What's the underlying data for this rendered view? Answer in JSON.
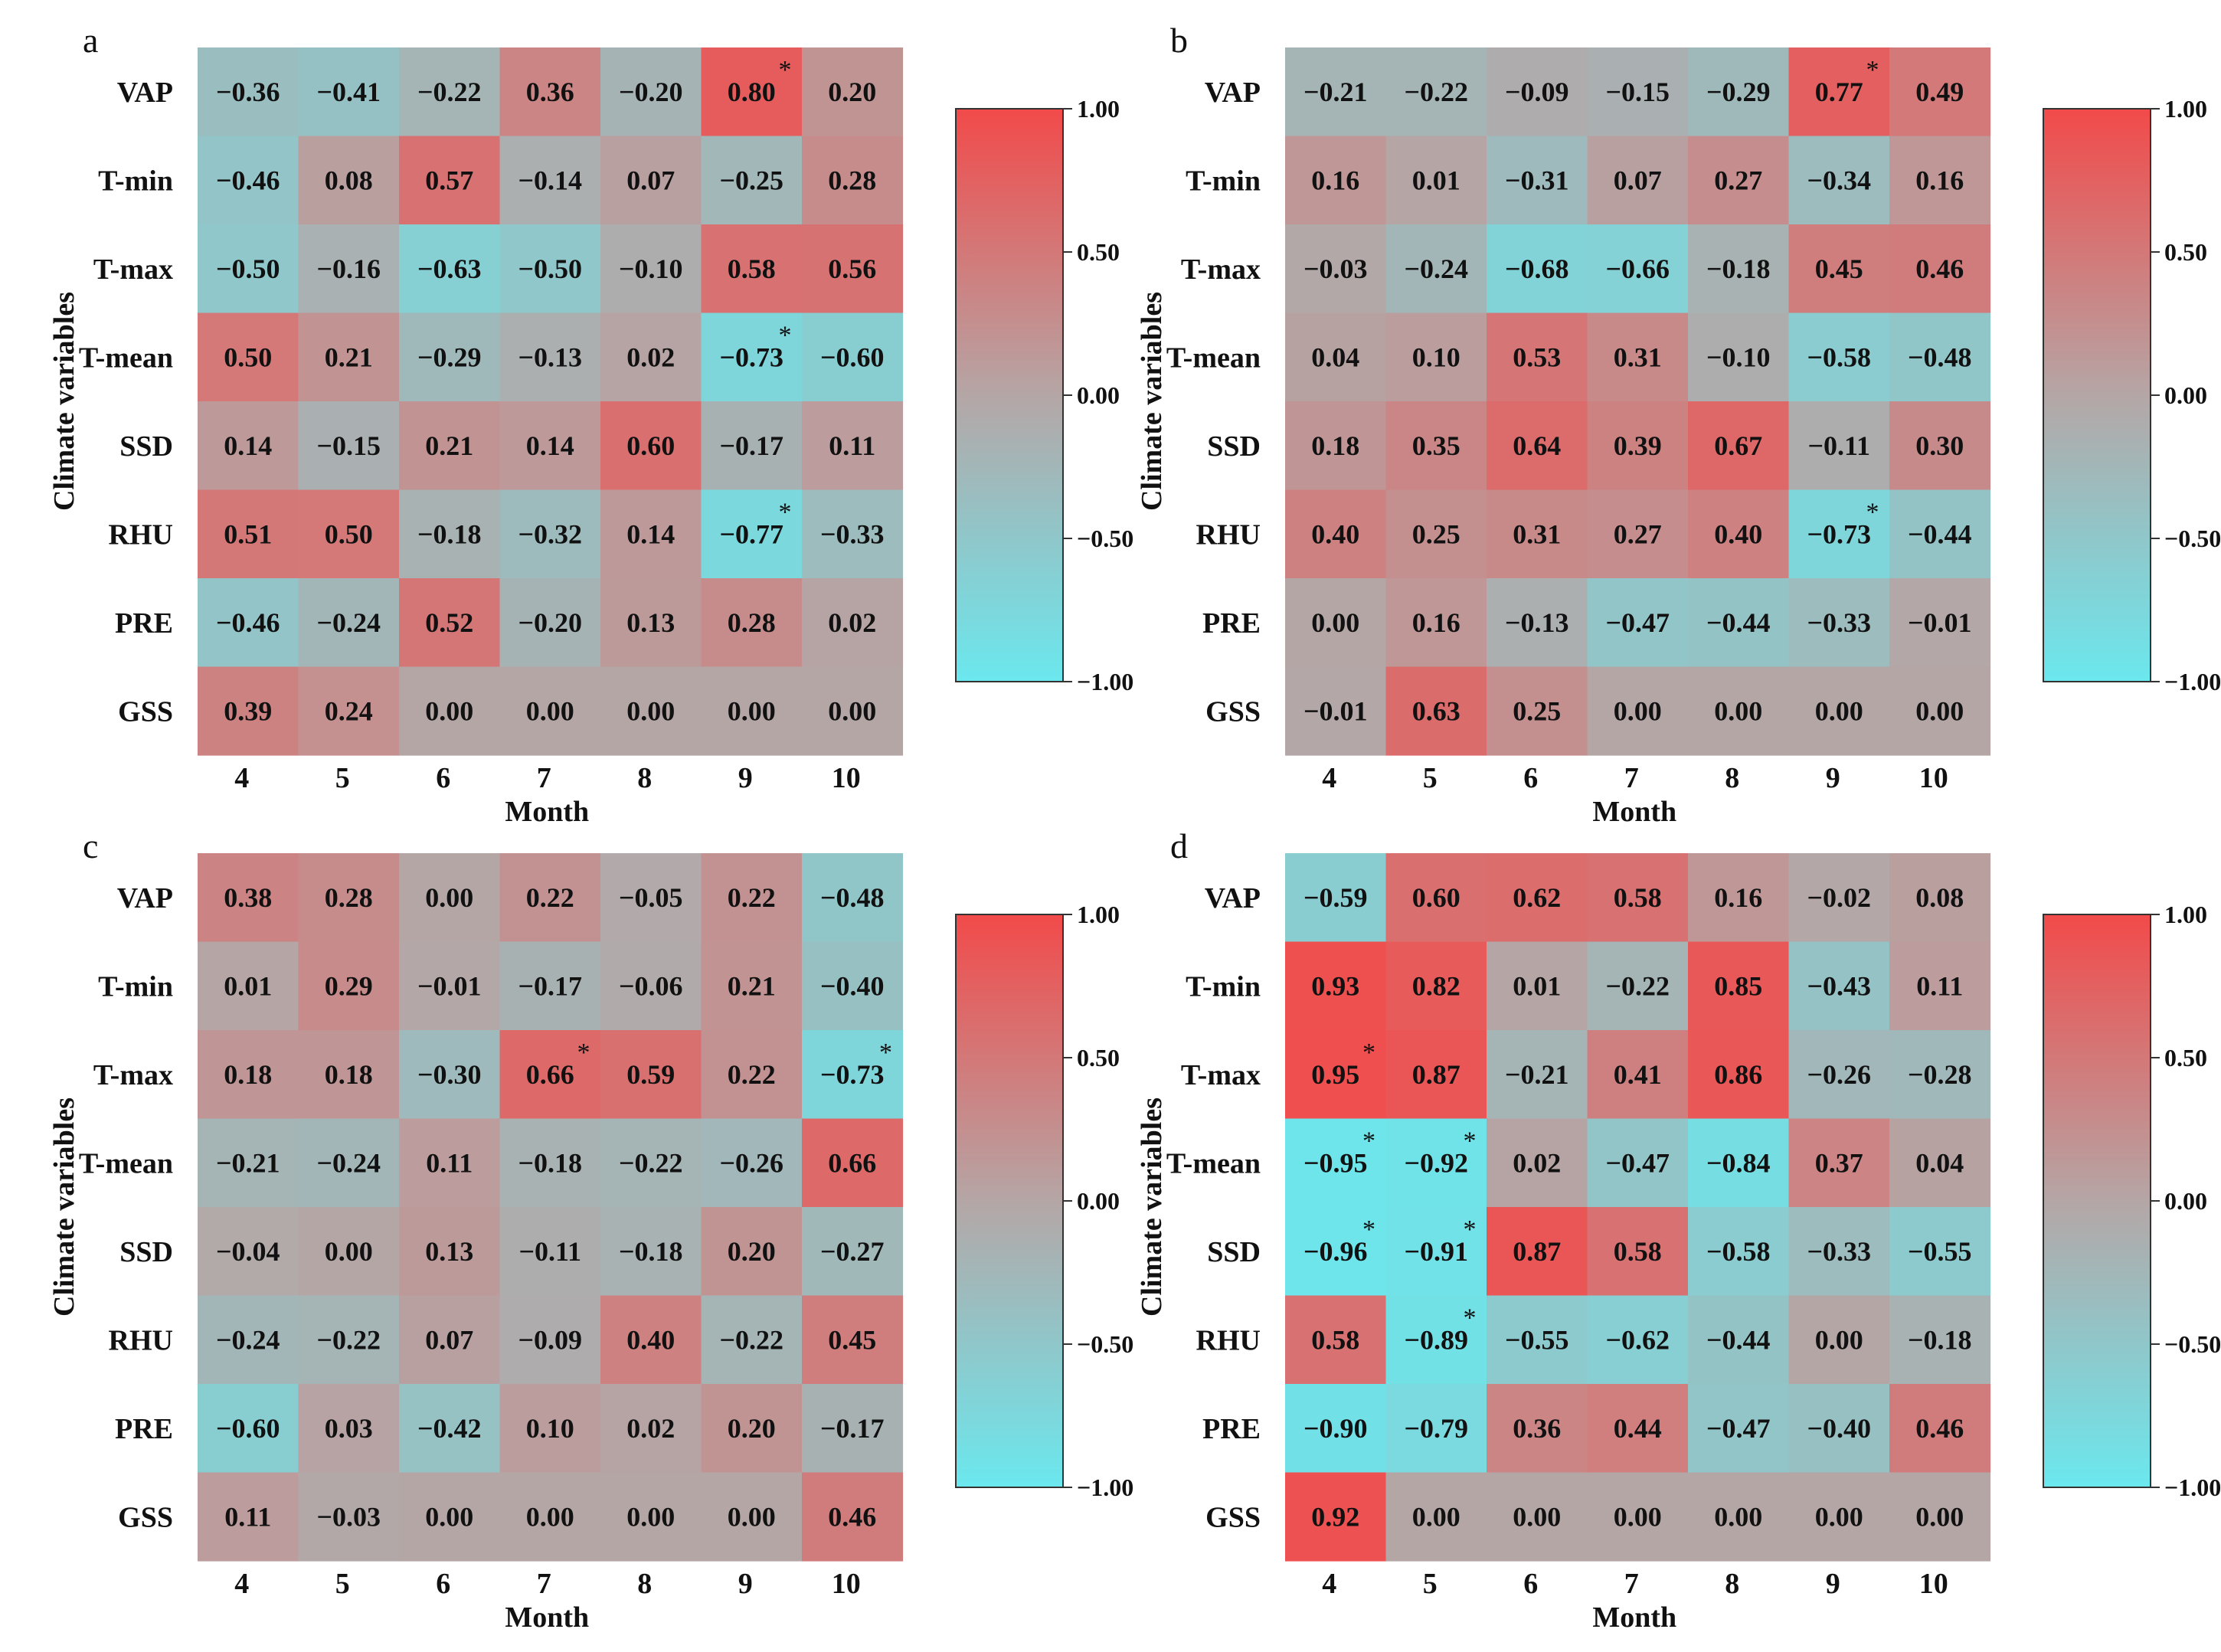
{
  "chart_data": [
    {
      "type": "heatmap",
      "panel": "a",
      "xlabel": "Month",
      "ylabel": "Climate variables",
      "rows": [
        "VAP",
        "T-min",
        "T-max",
        "T-mean",
        "SSD",
        "RHU",
        "PRE",
        "GSS"
      ],
      "columns": [
        "4",
        "5",
        "6",
        "7",
        "8",
        "9",
        "10"
      ],
      "values": [
        [
          -0.36,
          -0.41,
          -0.22,
          0.36,
          -0.2,
          0.8,
          0.2
        ],
        [
          -0.46,
          0.08,
          0.57,
          -0.14,
          0.07,
          -0.25,
          0.28
        ],
        [
          -0.5,
          -0.16,
          -0.63,
          -0.5,
          -0.1,
          0.58,
          0.56
        ],
        [
          0.5,
          0.21,
          -0.29,
          -0.13,
          0.02,
          -0.73,
          -0.6
        ],
        [
          0.14,
          -0.15,
          0.21,
          0.14,
          0.6,
          -0.17,
          0.11
        ],
        [
          0.51,
          0.5,
          -0.18,
          -0.32,
          0.14,
          -0.77,
          -0.33
        ],
        [
          -0.46,
          -0.24,
          0.52,
          -0.2,
          0.13,
          0.28,
          0.02
        ],
        [
          0.39,
          0.24,
          0.0,
          0.0,
          0.0,
          0.0,
          0.0
        ]
      ],
      "significant": [
        [
          0,
          5
        ],
        [
          3,
          5
        ],
        [
          5,
          5
        ]
      ],
      "colorbar_ticks": [
        "1.00",
        "0.50",
        "0.00",
        "-0.50",
        "-1.00"
      ],
      "vmin": -1,
      "vmax": 1
    },
    {
      "type": "heatmap",
      "panel": "b",
      "xlabel": "Month",
      "ylabel": "Climate variables",
      "rows": [
        "VAP",
        "T-min",
        "T-max",
        "T-mean",
        "SSD",
        "RHU",
        "PRE",
        "GSS"
      ],
      "columns": [
        "4",
        "5",
        "6",
        "7",
        "8",
        "9",
        "10"
      ],
      "values": [
        [
          -0.21,
          -0.22,
          -0.09,
          -0.15,
          -0.29,
          0.77,
          0.49
        ],
        [
          0.16,
          0.01,
          -0.31,
          0.07,
          0.27,
          -0.34,
          0.16
        ],
        [
          -0.03,
          -0.24,
          -0.68,
          -0.66,
          -0.18,
          0.45,
          0.46
        ],
        [
          0.04,
          0.1,
          0.53,
          0.31,
          -0.1,
          -0.58,
          -0.48
        ],
        [
          0.18,
          0.35,
          0.64,
          0.39,
          0.67,
          -0.11,
          0.3
        ],
        [
          0.4,
          0.25,
          0.31,
          0.27,
          0.4,
          -0.73,
          -0.44
        ],
        [
          0.0,
          0.16,
          -0.13,
          -0.47,
          -0.44,
          -0.33,
          -0.01
        ],
        [
          -0.01,
          0.63,
          0.25,
          0.0,
          0.0,
          0.0,
          0.0
        ]
      ],
      "significant": [
        [
          0,
          5
        ],
        [
          5,
          5
        ]
      ],
      "colorbar_ticks": [
        "1.00",
        "0.50",
        "0.00",
        "-0.50",
        "-1.00"
      ],
      "vmin": -1,
      "vmax": 1
    },
    {
      "type": "heatmap",
      "panel": "c",
      "xlabel": "Month",
      "ylabel": "Climate variables",
      "rows": [
        "VAP",
        "T-min",
        "T-max",
        "T-mean",
        "SSD",
        "RHU",
        "PRE",
        "GSS"
      ],
      "columns": [
        "4",
        "5",
        "6",
        "7",
        "8",
        "9",
        "10"
      ],
      "values": [
        [
          0.38,
          0.28,
          0.0,
          0.22,
          -0.05,
          0.22,
          -0.48
        ],
        [
          0.01,
          0.29,
          -0.01,
          -0.17,
          -0.06,
          0.21,
          -0.4
        ],
        [
          0.18,
          0.18,
          -0.3,
          0.66,
          0.59,
          0.22,
          -0.73
        ],
        [
          -0.21,
          -0.24,
          0.11,
          -0.18,
          -0.22,
          -0.26,
          0.66
        ],
        [
          -0.04,
          0.0,
          0.13,
          -0.11,
          -0.18,
          0.2,
          -0.27
        ],
        [
          -0.24,
          -0.22,
          0.07,
          -0.09,
          0.4,
          -0.22,
          0.45
        ],
        [
          -0.6,
          0.03,
          -0.42,
          0.1,
          0.02,
          0.2,
          -0.17
        ],
        [
          0.11,
          -0.03,
          0.0,
          0.0,
          0.0,
          0.0,
          0.46
        ]
      ],
      "significant": [
        [
          2,
          3
        ],
        [
          2,
          6
        ]
      ],
      "colorbar_ticks": [
        "1.00",
        "0.50",
        "0.00",
        "-0.50",
        "-1.00"
      ],
      "vmin": -1,
      "vmax": 1
    },
    {
      "type": "heatmap",
      "panel": "d",
      "xlabel": "Month",
      "ylabel": "Climate variables",
      "rows": [
        "VAP",
        "T-min",
        "T-max",
        "T-mean",
        "SSD",
        "RHU",
        "PRE",
        "GSS"
      ],
      "columns": [
        "4",
        "5",
        "6",
        "7",
        "8",
        "9",
        "10"
      ],
      "values": [
        [
          -0.59,
          0.6,
          0.62,
          0.58,
          0.16,
          -0.02,
          0.08
        ],
        [
          0.93,
          0.82,
          0.01,
          -0.22,
          0.85,
          -0.43,
          0.11
        ],
        [
          0.95,
          0.87,
          -0.21,
          0.41,
          0.86,
          -0.26,
          -0.28
        ],
        [
          -0.95,
          -0.92,
          0.02,
          -0.47,
          -0.84,
          0.37,
          0.04
        ],
        [
          -0.96,
          -0.91,
          0.87,
          0.58,
          -0.58,
          -0.33,
          -0.55
        ],
        [
          0.58,
          -0.89,
          -0.55,
          -0.62,
          -0.44,
          0.0,
          -0.18
        ],
        [
          -0.9,
          -0.79,
          0.36,
          0.44,
          -0.47,
          -0.4,
          0.46
        ],
        [
          0.92,
          0.0,
          0.0,
          0.0,
          0.0,
          0.0,
          0.0
        ]
      ],
      "significant": [
        [
          2,
          0
        ],
        [
          3,
          0
        ],
        [
          3,
          1
        ],
        [
          4,
          0
        ],
        [
          4,
          1
        ],
        [
          5,
          1
        ]
      ],
      "colorbar_ticks": [
        "1.00",
        "0.50",
        "0.00",
        "-0.50",
        "-1.00"
      ],
      "vmin": -1,
      "vmax": 1
    }
  ],
  "significance_marker": "*",
  "colors": {
    "positive": "#f24a4a",
    "neutral": "#b5a6a6",
    "negative": "#6ae8ee",
    "text": "#111111"
  }
}
